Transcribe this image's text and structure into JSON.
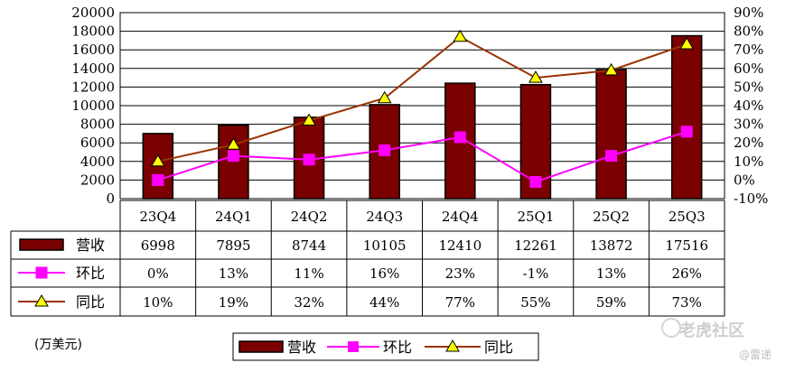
{
  "chart_data": {
    "type": "bar",
    "categories": [
      "23Q4",
      "24Q1",
      "24Q2",
      "24Q3",
      "24Q4",
      "25Q1",
      "25Q2",
      "25Q3"
    ],
    "series": [
      {
        "name": "营收",
        "type": "bar",
        "axis": "left",
        "values": [
          6998,
          7895,
          8744,
          10105,
          12410,
          12261,
          13872,
          17516
        ],
        "labels": [
          "6998",
          "7895",
          "8744",
          "10105",
          "12410",
          "12261",
          "13872",
          "17516"
        ]
      },
      {
        "name": "环比",
        "type": "line",
        "axis": "right",
        "unit": "%",
        "values": [
          0,
          13,
          11,
          16,
          23,
          -1,
          13,
          26
        ],
        "labels": [
          "0%",
          "13%",
          "11%",
          "16%",
          "23%",
          "-1%",
          "13%",
          "26%"
        ]
      },
      {
        "name": "同比",
        "type": "line",
        "axis": "right",
        "unit": "%",
        "values": [
          10,
          19,
          32,
          44,
          77,
          55,
          59,
          73
        ],
        "labels": [
          "10%",
          "19%",
          "32%",
          "44%",
          "77%",
          "55%",
          "59%",
          "73%"
        ]
      }
    ],
    "left_axis": {
      "ylim": [
        0,
        20000
      ],
      "ticks": [
        "0",
        "2000",
        "4000",
        "6000",
        "8000",
        "10000",
        "12000",
        "14000",
        "16000",
        "18000",
        "20000"
      ]
    },
    "right_axis": {
      "ylim": [
        -10,
        90
      ],
      "ticks": [
        "-10%",
        "0%",
        "10%",
        "20%",
        "30%",
        "40%",
        "50%",
        "60%",
        "70%",
        "80%",
        "90%"
      ]
    },
    "grid": true,
    "legend_position": "bottom",
    "data_table": true
  },
  "unit_note": "(万美元)",
  "legend": {
    "items": [
      "营收",
      "环比",
      "同比"
    ]
  },
  "watermark": {
    "text": "老虎社区",
    "author": "@雷递"
  },
  "colors": {
    "bar": "#7b0000",
    "ring": "#ff00ff",
    "yoy": "#993300",
    "triangle": "#ffff00"
  }
}
